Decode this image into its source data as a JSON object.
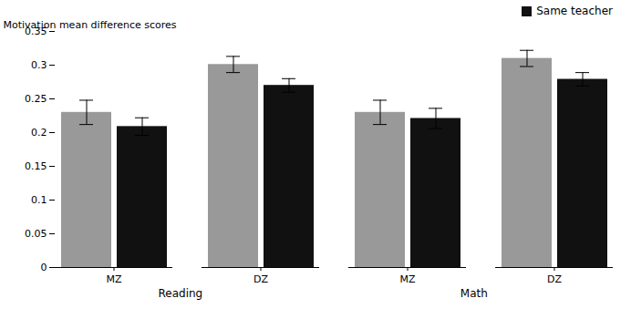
{
  "chart_data": {
    "type": "bar",
    "categories": [
      "MZ",
      "DZ",
      "MZ",
      "DZ"
    ],
    "groups": [
      "Reading",
      "Reading",
      "Math",
      "Math"
    ],
    "ylabel": "Motivation mean difference scores",
    "ylim": [
      0,
      0.35
    ],
    "yticks": [
      0,
      0.05,
      0.1,
      0.15,
      0.2,
      0.25,
      0.3,
      0.35
    ],
    "grid": false,
    "legend": "upper right",
    "series": [
      {
        "color": "#999999",
        "values": [
          0.23,
          0.301,
          0.23,
          0.31
        ],
        "errors": [
          0.018,
          0.012,
          0.018,
          0.012
        ]
      },
      {
        "name": "Same teacher",
        "color": "#111111",
        "values": [
          0.209,
          0.27,
          0.221,
          0.279
        ],
        "errors": [
          0.013,
          0.01,
          0.015,
          0.01
        ]
      }
    ]
  }
}
